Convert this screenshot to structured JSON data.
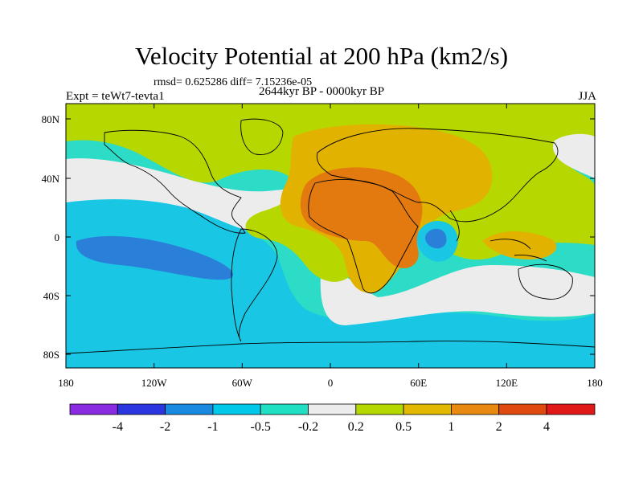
{
  "title": "Velocity Potential at 200 hPa (km2/s)",
  "stats": "rmsd= 0.625286 diff= 7.15236e-05",
  "expt": "Expt = teWt7-tevta1",
  "period": "2644kyr BP - 0000kyr BP",
  "season": "JJA",
  "map": {
    "lon_ticks": [
      "180",
      "120W",
      "60W",
      "0",
      "60E",
      "120E",
      "180"
    ],
    "lat_ticks": [
      "80N",
      "40N",
      "0",
      "40S",
      "80S"
    ]
  },
  "colorbar": {
    "labels": [
      "-4",
      "-2",
      "-1",
      "-0.5",
      "-0.2",
      "0.2",
      "0.5",
      "1",
      "2",
      "4"
    ],
    "colors": [
      "#8a2be2",
      "#2b35e0",
      "#1a8ae0",
      "#00c8e8",
      "#20e0c4",
      "#ececec",
      "#b4d800",
      "#e2b800",
      "#e88a10",
      "#e04a10",
      "#e01818"
    ]
  },
  "colors": {
    "neg_strong": "#2a80d8",
    "neg": "#19c7e4",
    "neg_weak": "#2ddcc6",
    "neutral": "#ececec",
    "pos_weak": "#b6d800",
    "pos": "#e2b200",
    "pos_strong": "#e27a10"
  }
}
